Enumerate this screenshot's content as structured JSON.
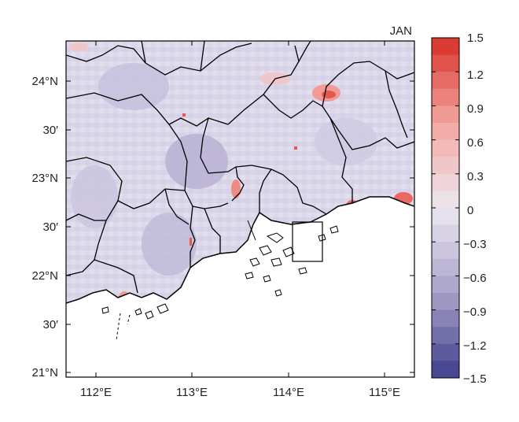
{
  "map": {
    "month_label": "JAN",
    "lat_labels": [
      "24°N",
      "30′",
      "23°N",
      "30′",
      "22°N",
      "30′",
      "21°N"
    ],
    "lon_labels": [
      "112°E",
      "113°E",
      "114°E",
      "115°E"
    ]
  },
  "colorbar": {
    "tick_labels": [
      "1.5",
      "1.2",
      "0.9",
      "0.6",
      "0.3",
      "0",
      "−0.3",
      "−0.6",
      "−0.9",
      "−1.2",
      "−1.5"
    ],
    "range": [
      -1.5,
      1.5
    ],
    "colors": {
      "max": "#d73027",
      "mid_positive": "#f4a6a0",
      "near_zero": "#ece8f0",
      "mid_negative": "#a7a1c8",
      "min": "#3f3c8c"
    }
  },
  "colors": {
    "land_background": "#ddd9ea",
    "sea": "#ffffff",
    "boundary": "#000000"
  }
}
